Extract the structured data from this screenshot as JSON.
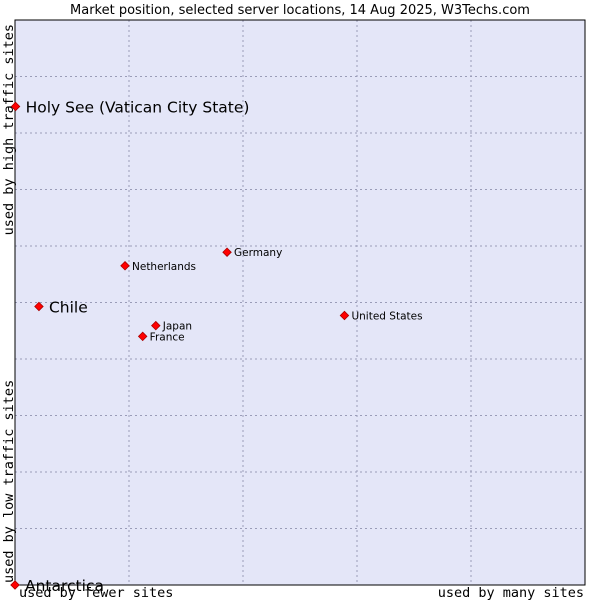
{
  "chart_data": {
    "type": "scatter",
    "title": "Market position, selected server locations, 14 Aug 2025, W3Techs.com",
    "xlabel_left": "used by fewer sites",
    "xlabel_right": "used by many sites",
    "ylabel_bottom": "used by low traffic sites",
    "ylabel_top": "used by high traffic sites",
    "xlim": [
      0,
      1
    ],
    "ylim": [
      0,
      1
    ],
    "grid": true,
    "colors": {
      "plot_background": "#e4e6f8",
      "grid": "#9a9cb8",
      "marker": "#ff0000",
      "marker_outline": "#aa0000"
    },
    "points": [
      {
        "label": "Holy See (Vatican City State)",
        "x": 0.001,
        "y": 0.847,
        "emphasis": true
      },
      {
        "label": "Germany",
        "x": 0.372,
        "y": 0.589,
        "emphasis": false
      },
      {
        "label": "Netherlands",
        "x": 0.193,
        "y": 0.565,
        "emphasis": false
      },
      {
        "label": "Chile",
        "x": 0.042,
        "y": 0.493,
        "emphasis": true
      },
      {
        "label": "United States",
        "x": 0.578,
        "y": 0.477,
        "emphasis": false
      },
      {
        "label": "Japan",
        "x": 0.247,
        "y": 0.459,
        "emphasis": false
      },
      {
        "label": "France",
        "x": 0.224,
        "y": 0.44,
        "emphasis": false
      },
      {
        "label": "Antarctica",
        "x": 0.0,
        "y": 0.0,
        "emphasis": true
      }
    ]
  }
}
